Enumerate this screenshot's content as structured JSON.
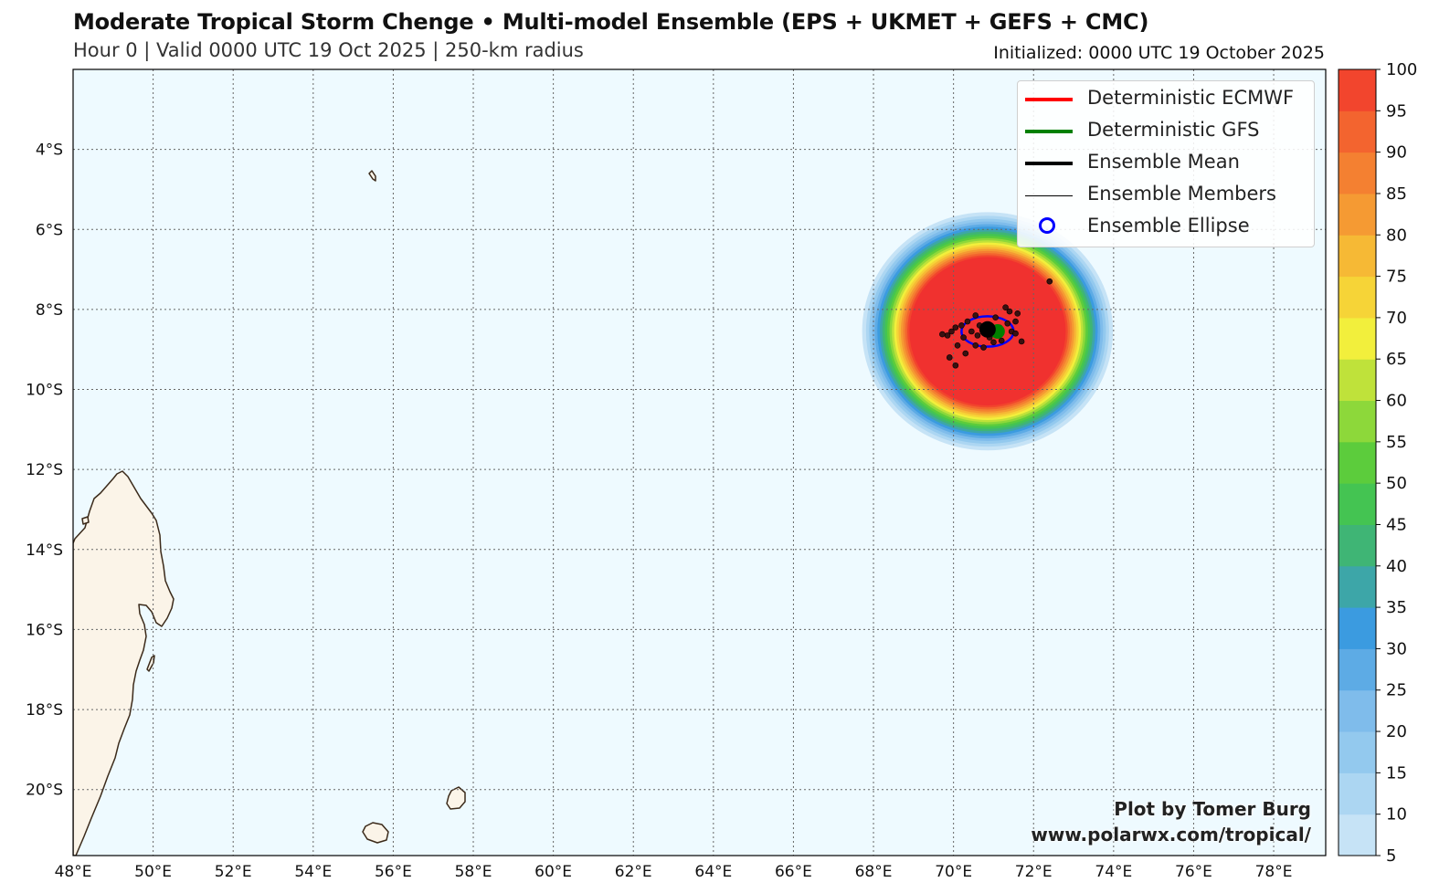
{
  "header": {
    "title": "Moderate Tropical Storm Chenge • Multi-model Ensemble (EPS + UKMET + GEFS + CMC)",
    "subtitle": "Hour 0 | Valid 0000 UTC 19 Oct 2025 | 250-km radius",
    "initialized": "Initialized: 0000 UTC 19 October 2025"
  },
  "map": {
    "extent": {
      "lon_min": 48,
      "lon_max": 79.3,
      "lat_min": -21.65,
      "lat_max": -2.0
    },
    "x_ticks": [
      {
        "lon": 48,
        "label": "48°E"
      },
      {
        "lon": 50,
        "label": "50°E"
      },
      {
        "lon": 52,
        "label": "52°E"
      },
      {
        "lon": 54,
        "label": "54°E"
      },
      {
        "lon": 56,
        "label": "56°E"
      },
      {
        "lon": 58,
        "label": "58°E"
      },
      {
        "lon": 60,
        "label": "60°E"
      },
      {
        "lon": 62,
        "label": "62°E"
      },
      {
        "lon": 64,
        "label": "64°E"
      },
      {
        "lon": 66,
        "label": "66°E"
      },
      {
        "lon": 68,
        "label": "68°E"
      },
      {
        "lon": 70,
        "label": "70°E"
      },
      {
        "lon": 72,
        "label": "72°E"
      },
      {
        "lon": 74,
        "label": "74°E"
      },
      {
        "lon": 76,
        "label": "76°E"
      },
      {
        "lon": 78,
        "label": "78°E"
      }
    ],
    "y_ticks": [
      {
        "lat": -4,
        "label": "4°S"
      },
      {
        "lat": -6,
        "label": "6°S"
      },
      {
        "lat": -8,
        "label": "8°S"
      },
      {
        "lat": -10,
        "label": "10°S"
      },
      {
        "lat": -12,
        "label": "12°S"
      },
      {
        "lat": -14,
        "label": "14°S"
      },
      {
        "lat": -16,
        "label": "16°S"
      },
      {
        "lat": -18,
        "label": "18°S"
      },
      {
        "lat": -20,
        "label": "20°S"
      }
    ],
    "storm_center": {
      "lon": 70.85,
      "lat": -8.5
    },
    "probability_radius_km": 250,
    "colors": {
      "ocean": "#eefaff",
      "land": "#fbf4e8",
      "coast": "#3b2a1a",
      "grid": "#666666"
    }
  },
  "colorbar": {
    "levels": [
      5,
      10,
      15,
      20,
      25,
      30,
      35,
      40,
      45,
      50,
      55,
      60,
      65,
      70,
      75,
      80,
      85,
      90,
      95,
      100
    ],
    "colors": [
      "#c6e3f6",
      "#acd6f2",
      "#93c9ee",
      "#7fbceb",
      "#5dabe5",
      "#3b9be0",
      "#3da6a8",
      "#3fb575",
      "#44c452",
      "#5ccc3c",
      "#8dd83a",
      "#bfe23a",
      "#f2ef3c",
      "#f6d437",
      "#f6b935",
      "#f59a33",
      "#f48031",
      "#f3642f",
      "#f2452d",
      "#f0312f"
    ]
  },
  "ensemble": {
    "members": [
      {
        "lon": 70.95,
        "lat": -8.62
      },
      {
        "lon": 70.8,
        "lat": -8.55
      },
      {
        "lon": 71.15,
        "lat": -8.45
      },
      {
        "lon": 71.35,
        "lat": -8.35
      },
      {
        "lon": 70.45,
        "lat": -8.55
      },
      {
        "lon": 70.25,
        "lat": -8.7
      },
      {
        "lon": 70.1,
        "lat": -8.9
      },
      {
        "lon": 69.85,
        "lat": -8.65
      },
      {
        "lon": 69.72,
        "lat": -8.62
      },
      {
        "lon": 69.9,
        "lat": -9.2
      },
      {
        "lon": 70.05,
        "lat": -9.4
      },
      {
        "lon": 70.3,
        "lat": -9.1
      },
      {
        "lon": 70.55,
        "lat": -8.9
      },
      {
        "lon": 70.75,
        "lat": -8.95
      },
      {
        "lon": 71.0,
        "lat": -8.82
      },
      {
        "lon": 71.2,
        "lat": -8.78
      },
      {
        "lon": 71.45,
        "lat": -8.55
      },
      {
        "lon": 71.55,
        "lat": -8.3
      },
      {
        "lon": 71.4,
        "lat": -8.05
      },
      {
        "lon": 71.6,
        "lat": -8.1
      },
      {
        "lon": 70.35,
        "lat": -8.3
      },
      {
        "lon": 70.55,
        "lat": -8.15
      },
      {
        "lon": 70.2,
        "lat": -8.4
      },
      {
        "lon": 71.7,
        "lat": -8.8
      },
      {
        "lon": 71.3,
        "lat": -7.95
      },
      {
        "lon": 70.65,
        "lat": -8.4
      },
      {
        "lon": 71.05,
        "lat": -8.2
      },
      {
        "lon": 70.05,
        "lat": -8.45
      },
      {
        "lon": 69.95,
        "lat": -8.55
      },
      {
        "lon": 71.55,
        "lat": -8.6
      },
      {
        "lon": 70.9,
        "lat": -8.7
      },
      {
        "lon": 70.6,
        "lat": -8.65
      },
      {
        "lon": 72.4,
        "lat": -7.3
      }
    ],
    "ellipse": {
      "lon": 70.85,
      "lat": -8.55,
      "semi_lon": 0.65,
      "semi_lat": 0.38
    },
    "mean": {
      "lon": 70.85,
      "lat": -8.5
    },
    "gfs": {
      "lon": 71.1,
      "lat": -8.55
    }
  },
  "legend": {
    "items": [
      {
        "label": "Deterministic ECMWF",
        "color": "#ff0000",
        "style": "line",
        "width": 4
      },
      {
        "label": "Deterministic GFS",
        "color": "#008000",
        "style": "line",
        "width": 4
      },
      {
        "label": "Ensemble Mean",
        "color": "#000000",
        "style": "line",
        "width": 4
      },
      {
        "label": "Ensemble Members",
        "color": "#000000",
        "style": "line",
        "width": 1
      },
      {
        "label": "Ensemble Ellipse",
        "color": "#0000ff",
        "style": "ellipse",
        "width": 3
      }
    ]
  },
  "credits": {
    "author": "Plot by Tomer Burg",
    "url": "www.polarwx.com/tropical/"
  }
}
